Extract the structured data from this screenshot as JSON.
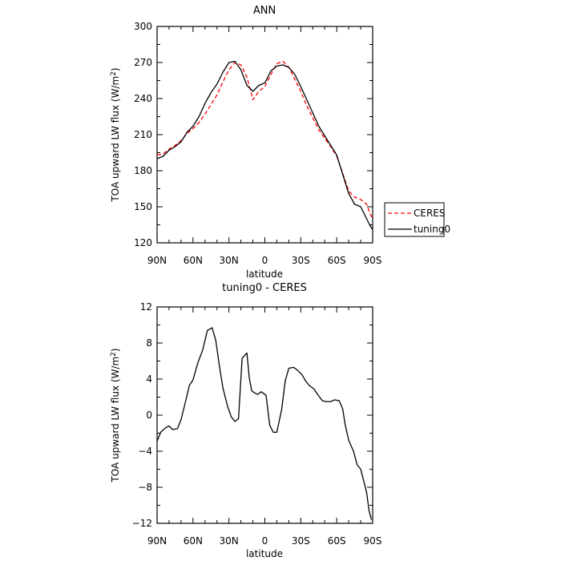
{
  "chart_data": [
    {
      "type": "line",
      "title": "ANN",
      "xlabel": "latitude",
      "ylabel_main": "TOA upward LW flux (W/m",
      "ylabel_sup": "2",
      "ylabel_close": ")",
      "xlim": [
        90,
        -90
      ],
      "ylim": [
        120,
        300
      ],
      "x_ticks": [
        90,
        60,
        30,
        0,
        -30,
        -60,
        -90
      ],
      "x_tick_labels": [
        "90N",
        "60N",
        "30N",
        "0",
        "30S",
        "60S",
        "90S"
      ],
      "y_ticks": [
        120,
        150,
        180,
        210,
        240,
        270,
        300
      ],
      "y_tick_labels": [
        "120",
        "150",
        "180",
        "210",
        "240",
        "270",
        "300"
      ],
      "legend_position": "right",
      "series": [
        {
          "name": "CERES",
          "color": "#ff0000",
          "dash": "dashed",
          "x": [
            90,
            85,
            80,
            75,
            70,
            65,
            60,
            55,
            50,
            45,
            40,
            35,
            30,
            25,
            20,
            15,
            10,
            5,
            0,
            -5,
            -10,
            -15,
            -20,
            -25,
            -30,
            -35,
            -40,
            -45,
            -50,
            -55,
            -60,
            -65,
            -70,
            -75,
            -80,
            -85,
            -88,
            -90
          ],
          "y": [
            193,
            194,
            198,
            201,
            205,
            211,
            215,
            220,
            227,
            235,
            243,
            254,
            264,
            270,
            268,
            258,
            239,
            246,
            250,
            260,
            269,
            271,
            266,
            256,
            246,
            234,
            224,
            214,
            207,
            200,
            192,
            178,
            163,
            158,
            156,
            152,
            144,
            140
          ]
        },
        {
          "name": "tuning0",
          "color": "#000000",
          "dash": "solid",
          "x": [
            90,
            85,
            80,
            75,
            70,
            65,
            60,
            55,
            50,
            45,
            40,
            35,
            30,
            25,
            20,
            15,
            10,
            5,
            0,
            -5,
            -10,
            -15,
            -20,
            -25,
            -30,
            -35,
            -40,
            -45,
            -50,
            -55,
            -60,
            -65,
            -70,
            -75,
            -80,
            -85,
            -88,
            -90
          ],
          "y": [
            190,
            192,
            197,
            200,
            204,
            212,
            217,
            225,
            236,
            245,
            252,
            262,
            270,
            271,
            264,
            251,
            246,
            251,
            253,
            263,
            267,
            268,
            266,
            260,
            250,
            239,
            228,
            217,
            209,
            201,
            193,
            177,
            161,
            152,
            150,
            140,
            134,
            131
          ]
        }
      ]
    },
    {
      "type": "line",
      "title": "tuning0 - CERES",
      "xlabel": "latitude",
      "ylabel_main": "TOA upward LW flux (W/m",
      "ylabel_sup": "2",
      "ylabel_close": ")",
      "xlim": [
        90,
        -90
      ],
      "ylim": [
        -12,
        12
      ],
      "x_ticks": [
        90,
        60,
        30,
        0,
        -30,
        -60,
        -90
      ],
      "x_tick_labels": [
        "90N",
        "60N",
        "30N",
        "0",
        "30S",
        "60S",
        "90S"
      ],
      "y_ticks": [
        -12,
        -8,
        -4,
        0,
        4,
        8,
        12
      ],
      "y_tick_labels": [
        "−12",
        "−8",
        "−4",
        "0",
        "4",
        "8",
        "12"
      ],
      "series": [
        {
          "name": "",
          "color": "#000000",
          "dash": "solid",
          "x": [
            90,
            87,
            83,
            80,
            77,
            73,
            70,
            67,
            63,
            60,
            56,
            52,
            48,
            44,
            41,
            38,
            35,
            31,
            28,
            25,
            22,
            19,
            15,
            13,
            11,
            9,
            6,
            3,
            -1,
            -4,
            -7,
            -10,
            -14,
            -17,
            -20,
            -24,
            -28,
            -31,
            -34,
            -37,
            -41,
            -44,
            -48,
            -51,
            -55,
            -58,
            -62,
            -65,
            -67,
            -70,
            -74,
            -77,
            -80,
            -82,
            -85,
            -87,
            -89
          ],
          "y": [
            -2.9,
            -1.9,
            -1.4,
            -1.2,
            -1.6,
            -1.5,
            -0.5,
            1.1,
            3.3,
            3.9,
            5.8,
            7.2,
            9.4,
            9.7,
            8.3,
            5.5,
            3.0,
            0.9,
            -0.2,
            -0.7,
            -0.4,
            6.3,
            6.9,
            4.1,
            2.7,
            2.5,
            2.3,
            2.6,
            2.2,
            -1.1,
            -1.9,
            -1.9,
            0.6,
            3.8,
            5.2,
            5.3,
            4.9,
            4.5,
            3.8,
            3.3,
            2.9,
            2.3,
            1.6,
            1.5,
            1.5,
            1.7,
            1.6,
            0.7,
            -1.0,
            -2.8,
            -4.0,
            -5.5,
            -6.0,
            -7.0,
            -8.6,
            -10.6,
            -11.6
          ]
        }
      ]
    }
  ]
}
